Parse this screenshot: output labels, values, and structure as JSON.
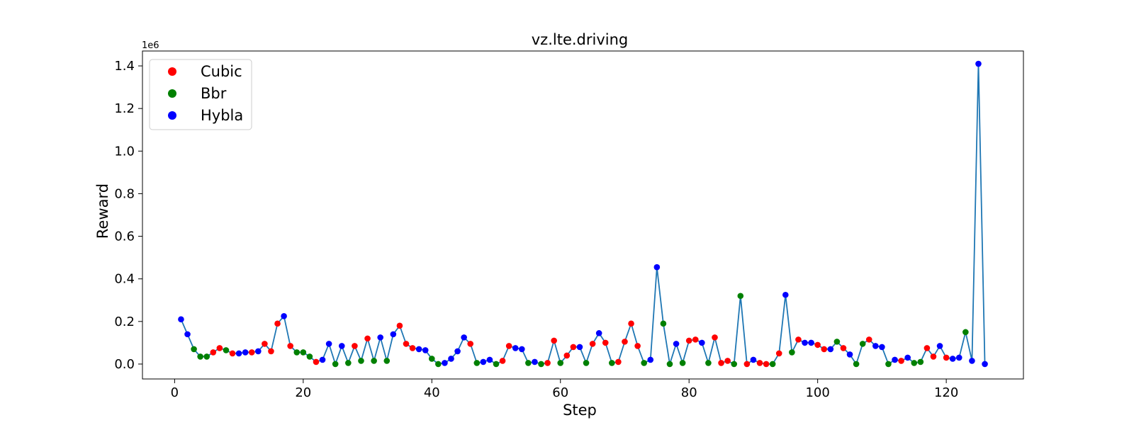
{
  "chart_data": {
    "type": "scatter",
    "title": "vz.lte.driving",
    "xlabel": "Step",
    "ylabel": "Reward",
    "y_scale_label": "1e6",
    "xlim": [
      -5,
      132
    ],
    "ylim": [
      -0.07,
      1.47
    ],
    "x_ticks": [
      0,
      20,
      40,
      60,
      80,
      100,
      120
    ],
    "y_ticks": [
      0.0,
      0.2,
      0.4,
      0.6,
      0.8,
      1.0,
      1.2,
      1.4
    ],
    "y_tick_labels": [
      "0.0",
      "0.2",
      "0.4",
      "0.6",
      "0.8",
      "1.0",
      "1.2",
      "1.4"
    ],
    "line_color": "#1f77b4",
    "legend": {
      "placement": "upper-left",
      "entries": [
        {
          "name": "Cubic",
          "color": "#ff0000"
        },
        {
          "name": "Bbr",
          "color": "#008000"
        },
        {
          "name": "Hybla",
          "color": "#0000ff"
        }
      ]
    },
    "points": [
      {
        "x": 1,
        "y": 0.21,
        "algo": "Hybla"
      },
      {
        "x": 2,
        "y": 0.14,
        "algo": "Hybla"
      },
      {
        "x": 3,
        "y": 0.07,
        "algo": "Bbr"
      },
      {
        "x": 4,
        "y": 0.035,
        "algo": "Bbr"
      },
      {
        "x": 5,
        "y": 0.035,
        "algo": "Bbr"
      },
      {
        "x": 6,
        "y": 0.055,
        "algo": "Cubic"
      },
      {
        "x": 7,
        "y": 0.075,
        "algo": "Cubic"
      },
      {
        "x": 8,
        "y": 0.065,
        "algo": "Bbr"
      },
      {
        "x": 9,
        "y": 0.05,
        "algo": "Cubic"
      },
      {
        "x": 10,
        "y": 0.05,
        "algo": "Hybla"
      },
      {
        "x": 11,
        "y": 0.055,
        "algo": "Hybla"
      },
      {
        "x": 12,
        "y": 0.055,
        "algo": "Cubic"
      },
      {
        "x": 13,
        "y": 0.06,
        "algo": "Hybla"
      },
      {
        "x": 14,
        "y": 0.095,
        "algo": "Cubic"
      },
      {
        "x": 15,
        "y": 0.06,
        "algo": "Cubic"
      },
      {
        "x": 16,
        "y": 0.19,
        "algo": "Cubic"
      },
      {
        "x": 17,
        "y": 0.225,
        "algo": "Hybla"
      },
      {
        "x": 18,
        "y": 0.085,
        "algo": "Cubic"
      },
      {
        "x": 19,
        "y": 0.055,
        "algo": "Bbr"
      },
      {
        "x": 20,
        "y": 0.055,
        "algo": "Bbr"
      },
      {
        "x": 21,
        "y": 0.035,
        "algo": "Bbr"
      },
      {
        "x": 22,
        "y": 0.01,
        "algo": "Cubic"
      },
      {
        "x": 23,
        "y": 0.02,
        "algo": "Hybla"
      },
      {
        "x": 24,
        "y": 0.095,
        "algo": "Hybla"
      },
      {
        "x": 25,
        "y": 0.0,
        "algo": "Bbr"
      },
      {
        "x": 26,
        "y": 0.085,
        "algo": "Hybla"
      },
      {
        "x": 27,
        "y": 0.005,
        "algo": "Bbr"
      },
      {
        "x": 28,
        "y": 0.085,
        "algo": "Cubic"
      },
      {
        "x": 29,
        "y": 0.015,
        "algo": "Bbr"
      },
      {
        "x": 30,
        "y": 0.12,
        "algo": "Cubic"
      },
      {
        "x": 31,
        "y": 0.015,
        "algo": "Bbr"
      },
      {
        "x": 32,
        "y": 0.125,
        "algo": "Hybla"
      },
      {
        "x": 33,
        "y": 0.015,
        "algo": "Bbr"
      },
      {
        "x": 34,
        "y": 0.14,
        "algo": "Hybla"
      },
      {
        "x": 35,
        "y": 0.18,
        "algo": "Cubic"
      },
      {
        "x": 36,
        "y": 0.095,
        "algo": "Cubic"
      },
      {
        "x": 37,
        "y": 0.075,
        "algo": "Cubic"
      },
      {
        "x": 38,
        "y": 0.07,
        "algo": "Hybla"
      },
      {
        "x": 39,
        "y": 0.065,
        "algo": "Hybla"
      },
      {
        "x": 40,
        "y": 0.025,
        "algo": "Bbr"
      },
      {
        "x": 41,
        "y": 0.0,
        "algo": "Bbr"
      },
      {
        "x": 42,
        "y": 0.005,
        "algo": "Hybla"
      },
      {
        "x": 43,
        "y": 0.025,
        "algo": "Hybla"
      },
      {
        "x": 44,
        "y": 0.06,
        "algo": "Hybla"
      },
      {
        "x": 45,
        "y": 0.125,
        "algo": "Hybla"
      },
      {
        "x": 46,
        "y": 0.095,
        "algo": "Cubic"
      },
      {
        "x": 47,
        "y": 0.005,
        "algo": "Bbr"
      },
      {
        "x": 48,
        "y": 0.01,
        "algo": "Hybla"
      },
      {
        "x": 49,
        "y": 0.02,
        "algo": "Hybla"
      },
      {
        "x": 50,
        "y": 0.0,
        "algo": "Bbr"
      },
      {
        "x": 51,
        "y": 0.015,
        "algo": "Cubic"
      },
      {
        "x": 52,
        "y": 0.085,
        "algo": "Cubic"
      },
      {
        "x": 53,
        "y": 0.075,
        "algo": "Hybla"
      },
      {
        "x": 54,
        "y": 0.07,
        "algo": "Hybla"
      },
      {
        "x": 55,
        "y": 0.005,
        "algo": "Bbr"
      },
      {
        "x": 56,
        "y": 0.01,
        "algo": "Hybla"
      },
      {
        "x": 57,
        "y": 0.0,
        "algo": "Bbr"
      },
      {
        "x": 58,
        "y": 0.005,
        "algo": "Cubic"
      },
      {
        "x": 59,
        "y": 0.11,
        "algo": "Cubic"
      },
      {
        "x": 60,
        "y": 0.005,
        "algo": "Bbr"
      },
      {
        "x": 61,
        "y": 0.04,
        "algo": "Cubic"
      },
      {
        "x": 62,
        "y": 0.08,
        "algo": "Cubic"
      },
      {
        "x": 63,
        "y": 0.08,
        "algo": "Hybla"
      },
      {
        "x": 64,
        "y": 0.005,
        "algo": "Bbr"
      },
      {
        "x": 65,
        "y": 0.095,
        "algo": "Cubic"
      },
      {
        "x": 66,
        "y": 0.145,
        "algo": "Hybla"
      },
      {
        "x": 67,
        "y": 0.1,
        "algo": "Cubic"
      },
      {
        "x": 68,
        "y": 0.005,
        "algo": "Bbr"
      },
      {
        "x": 69,
        "y": 0.01,
        "algo": "Cubic"
      },
      {
        "x": 70,
        "y": 0.105,
        "algo": "Cubic"
      },
      {
        "x": 71,
        "y": 0.19,
        "algo": "Cubic"
      },
      {
        "x": 72,
        "y": 0.085,
        "algo": "Cubic"
      },
      {
        "x": 73,
        "y": 0.005,
        "algo": "Bbr"
      },
      {
        "x": 74,
        "y": 0.02,
        "algo": "Hybla"
      },
      {
        "x": 75,
        "y": 0.455,
        "algo": "Hybla"
      },
      {
        "x": 76,
        "y": 0.19,
        "algo": "Bbr"
      },
      {
        "x": 77,
        "y": 0.0,
        "algo": "Bbr"
      },
      {
        "x": 78,
        "y": 0.095,
        "algo": "Hybla"
      },
      {
        "x": 79,
        "y": 0.005,
        "algo": "Bbr"
      },
      {
        "x": 80,
        "y": 0.11,
        "algo": "Cubic"
      },
      {
        "x": 81,
        "y": 0.115,
        "algo": "Cubic"
      },
      {
        "x": 82,
        "y": 0.1,
        "algo": "Hybla"
      },
      {
        "x": 83,
        "y": 0.005,
        "algo": "Bbr"
      },
      {
        "x": 84,
        "y": 0.125,
        "algo": "Cubic"
      },
      {
        "x": 85,
        "y": 0.005,
        "algo": "Cubic"
      },
      {
        "x": 86,
        "y": 0.015,
        "algo": "Cubic"
      },
      {
        "x": 87,
        "y": 0.0,
        "algo": "Bbr"
      },
      {
        "x": 88,
        "y": 0.32,
        "algo": "Bbr"
      },
      {
        "x": 89,
        "y": 0.0,
        "algo": "Cubic"
      },
      {
        "x": 90,
        "y": 0.02,
        "algo": "Hybla"
      },
      {
        "x": 91,
        "y": 0.005,
        "algo": "Cubic"
      },
      {
        "x": 92,
        "y": 0.0,
        "algo": "Cubic"
      },
      {
        "x": 93,
        "y": 0.0,
        "algo": "Bbr"
      },
      {
        "x": 94,
        "y": 0.05,
        "algo": "Cubic"
      },
      {
        "x": 95,
        "y": 0.325,
        "algo": "Hybla"
      },
      {
        "x": 96,
        "y": 0.055,
        "algo": "Bbr"
      },
      {
        "x": 97,
        "y": 0.115,
        "algo": "Cubic"
      },
      {
        "x": 98,
        "y": 0.1,
        "algo": "Hybla"
      },
      {
        "x": 99,
        "y": 0.1,
        "algo": "Hybla"
      },
      {
        "x": 100,
        "y": 0.09,
        "algo": "Cubic"
      },
      {
        "x": 101,
        "y": 0.07,
        "algo": "Cubic"
      },
      {
        "x": 102,
        "y": 0.07,
        "algo": "Hybla"
      },
      {
        "x": 103,
        "y": 0.105,
        "algo": "Bbr"
      },
      {
        "x": 104,
        "y": 0.075,
        "algo": "Cubic"
      },
      {
        "x": 105,
        "y": 0.045,
        "algo": "Hybla"
      },
      {
        "x": 106,
        "y": 0.0,
        "algo": "Bbr"
      },
      {
        "x": 107,
        "y": 0.095,
        "algo": "Bbr"
      },
      {
        "x": 108,
        "y": 0.115,
        "algo": "Cubic"
      },
      {
        "x": 109,
        "y": 0.085,
        "algo": "Hybla"
      },
      {
        "x": 110,
        "y": 0.08,
        "algo": "Hybla"
      },
      {
        "x": 111,
        "y": 0.0,
        "algo": "Bbr"
      },
      {
        "x": 112,
        "y": 0.02,
        "algo": "Hybla"
      },
      {
        "x": 113,
        "y": 0.015,
        "algo": "Cubic"
      },
      {
        "x": 114,
        "y": 0.03,
        "algo": "Hybla"
      },
      {
        "x": 115,
        "y": 0.005,
        "algo": "Bbr"
      },
      {
        "x": 116,
        "y": 0.01,
        "algo": "Bbr"
      },
      {
        "x": 117,
        "y": 0.075,
        "algo": "Cubic"
      },
      {
        "x": 118,
        "y": 0.035,
        "algo": "Cubic"
      },
      {
        "x": 119,
        "y": 0.085,
        "algo": "Hybla"
      },
      {
        "x": 120,
        "y": 0.03,
        "algo": "Cubic"
      },
      {
        "x": 121,
        "y": 0.025,
        "algo": "Hybla"
      },
      {
        "x": 122,
        "y": 0.03,
        "algo": "Hybla"
      },
      {
        "x": 123,
        "y": 0.15,
        "algo": "Bbr"
      },
      {
        "x": 124,
        "y": 0.015,
        "algo": "Hybla"
      },
      {
        "x": 125,
        "y": 1.41,
        "algo": "Hybla"
      },
      {
        "x": 126,
        "y": 0.0,
        "algo": "Hybla"
      }
    ]
  }
}
